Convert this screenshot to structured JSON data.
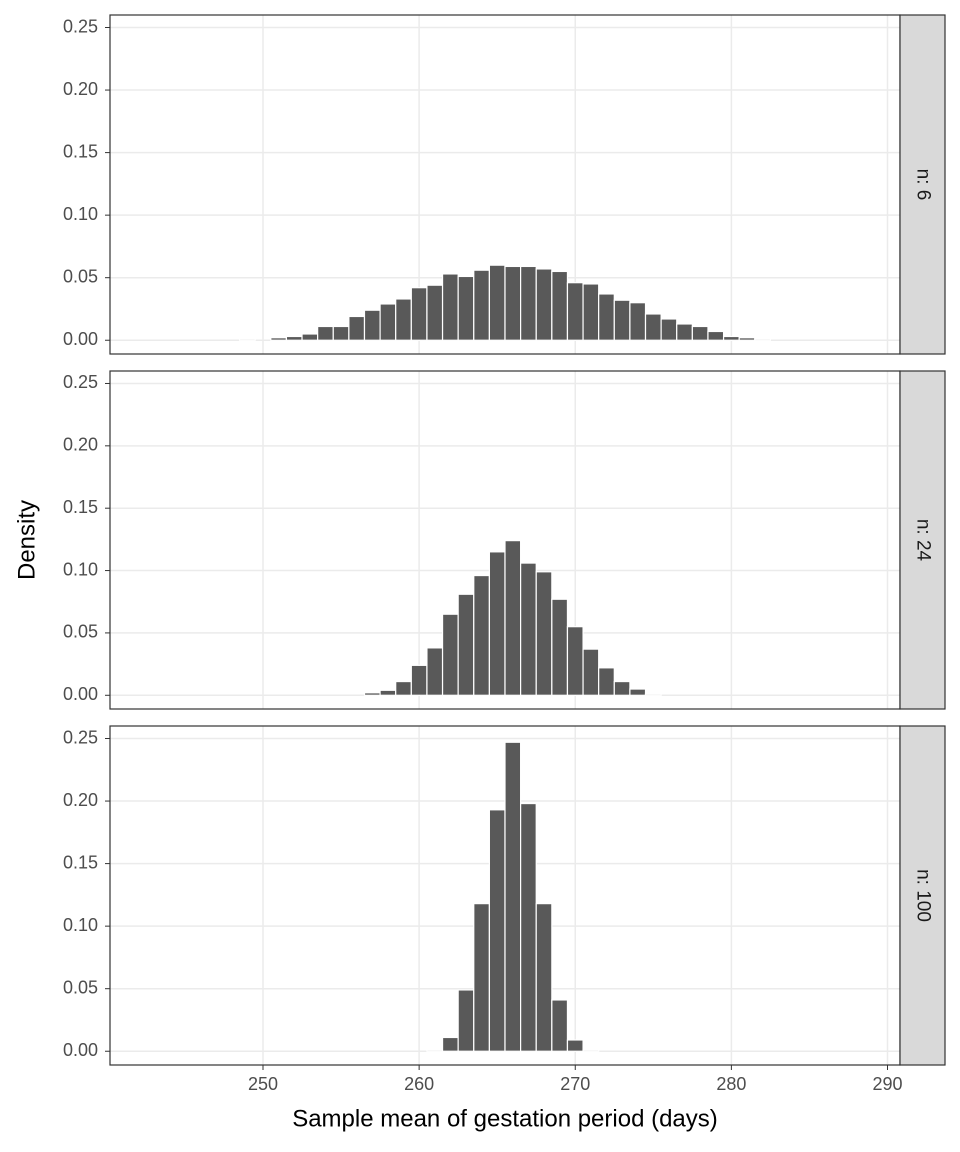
{
  "chart_data": [
    {
      "type": "histogram",
      "strip": "n: 6",
      "color": "#595959",
      "grid": true,
      "xlim": [
        240.2,
        290.8
      ],
      "xticks": [
        250,
        260,
        270,
        280,
        290
      ],
      "ylim": [
        -0.011,
        0.26
      ],
      "yticks": [
        {
          "value": 0,
          "label": "0.00"
        },
        {
          "value": 0.05,
          "label": "0.05"
        },
        {
          "value": 0.1,
          "label": "0.10"
        },
        {
          "value": 0.15,
          "label": "0.15"
        },
        {
          "value": 0.2,
          "label": "0.20"
        },
        {
          "value": 0.25,
          "label": "0.25"
        }
      ],
      "bins": [
        242.5,
        243.5,
        244.5,
        245.5,
        246.5,
        247.5,
        248.5,
        249.5,
        250.5,
        251.5,
        252.5,
        253.5,
        254.5,
        255.5,
        256.5,
        257.5,
        258.5,
        259.5,
        260.5,
        261.5,
        262.5,
        263.5,
        264.5,
        265.5,
        266.5,
        267.5,
        268.5,
        269.5,
        270.5,
        271.5,
        272.5,
        273.5,
        274.5,
        275.5,
        276.5,
        277.5,
        278.5,
        279.5,
        280.5,
        281.5,
        282.5,
        283.5,
        284.5,
        285.5,
        286.5,
        287.5,
        288.5
      ],
      "values": [
        0,
        0,
        0,
        0,
        0,
        0,
        0.001,
        0,
        0.002,
        0.003,
        0.005,
        0.011,
        0.011,
        0.019,
        0.024,
        0.029,
        0.033,
        0.042,
        0.044,
        0.053,
        0.051,
        0.056,
        0.06,
        0.059,
        0.059,
        0.057,
        0.055,
        0.046,
        0.045,
        0.037,
        0.032,
        0.03,
        0.021,
        0.017,
        0.013,
        0.011,
        0.007,
        0.003,
        0.002,
        0.001,
        0,
        0,
        0,
        0,
        0,
        0
      ]
    },
    {
      "type": "histogram",
      "strip": "n: 24",
      "color": "#595959",
      "grid": true,
      "ylabel": "Density",
      "xlim": [
        240.2,
        290.8
      ],
      "xticks": [
        250,
        260,
        270,
        280,
        290
      ],
      "ylim": [
        -0.011,
        0.26
      ],
      "yticks": [
        {
          "value": 0,
          "label": "0.00"
        },
        {
          "value": 0.05,
          "label": "0.05"
        },
        {
          "value": 0.1,
          "label": "0.10"
        },
        {
          "value": 0.15,
          "label": "0.15"
        },
        {
          "value": 0.2,
          "label": "0.20"
        },
        {
          "value": 0.25,
          "label": "0.25"
        }
      ],
      "bins": [
        242.5,
        243.5,
        244.5,
        245.5,
        246.5,
        247.5,
        248.5,
        249.5,
        250.5,
        251.5,
        252.5,
        253.5,
        254.5,
        255.5,
        256.5,
        257.5,
        258.5,
        259.5,
        260.5,
        261.5,
        262.5,
        263.5,
        264.5,
        265.5,
        266.5,
        267.5,
        268.5,
        269.5,
        270.5,
        271.5,
        272.5,
        273.5,
        274.5,
        275.5,
        276.5,
        277.5,
        278.5,
        279.5,
        280.5,
        281.5,
        282.5,
        283.5,
        284.5,
        285.5,
        286.5,
        287.5,
        288.5
      ],
      "values": [
        0,
        0,
        0,
        0,
        0,
        0,
        0,
        0,
        0,
        0,
        0,
        0,
        0,
        0,
        0.002,
        0.004,
        0.011,
        0.024,
        0.038,
        0.065,
        0.081,
        0.096,
        0.115,
        0.124,
        0.106,
        0.099,
        0.077,
        0.055,
        0.037,
        0.022,
        0.011,
        0.005,
        0.001,
        0,
        0,
        0,
        0,
        0,
        0,
        0,
        0,
        0,
        0,
        0,
        0,
        0
      ]
    },
    {
      "type": "histogram",
      "strip": "n: 100",
      "color": "#595959",
      "grid": true,
      "xlabel": "Sample mean of gestation period (days)",
      "xlim": [
        240.2,
        290.8
      ],
      "xticks": [
        250,
        260,
        270,
        280,
        290
      ],
      "ylim": [
        -0.011,
        0.26
      ],
      "yticks": [
        {
          "value": 0,
          "label": "0.00"
        },
        {
          "value": 0.05,
          "label": "0.05"
        },
        {
          "value": 0.1,
          "label": "0.10"
        },
        {
          "value": 0.15,
          "label": "0.15"
        },
        {
          "value": 0.2,
          "label": "0.20"
        },
        {
          "value": 0.25,
          "label": "0.25"
        }
      ],
      "bins": [
        242.5,
        243.5,
        244.5,
        245.5,
        246.5,
        247.5,
        248.5,
        249.5,
        250.5,
        251.5,
        252.5,
        253.5,
        254.5,
        255.5,
        256.5,
        257.5,
        258.5,
        259.5,
        260.5,
        261.5,
        262.5,
        263.5,
        264.5,
        265.5,
        266.5,
        267.5,
        268.5,
        269.5,
        270.5,
        271.5,
        272.5,
        273.5,
        274.5,
        275.5,
        276.5,
        277.5,
        278.5,
        279.5,
        280.5,
        281.5,
        282.5,
        283.5,
        284.5,
        285.5,
        286.5,
        287.5,
        288.5
      ],
      "values": [
        0,
        0,
        0,
        0,
        0,
        0,
        0,
        0,
        0,
        0,
        0,
        0,
        0,
        0,
        0,
        0,
        0,
        0,
        0.001,
        0.011,
        0.049,
        0.118,
        0.193,
        0.247,
        0.198,
        0.118,
        0.041,
        0.009,
        0.001,
        0,
        0,
        0,
        0,
        0,
        0,
        0,
        0,
        0,
        0,
        0,
        0,
        0,
        0,
        0,
        0,
        0
      ]
    }
  ]
}
